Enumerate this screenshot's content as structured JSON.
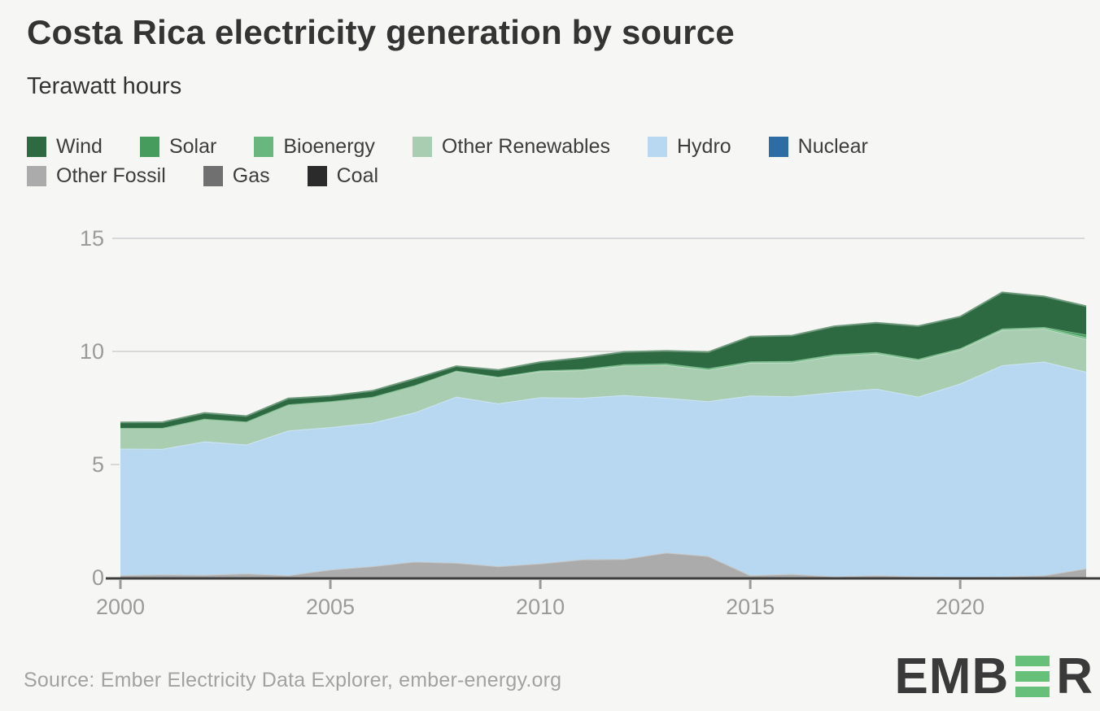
{
  "header": {
    "title": "Costa Rica electricity generation by source",
    "subtitle": "Terawatt hours"
  },
  "legend": {
    "rows": [
      [
        "Wind",
        "Solar",
        "Bioenergy",
        "Other Renewables",
        "Hydro",
        "Nuclear"
      ],
      [
        "Other Fossil",
        "Gas",
        "Coal"
      ]
    ]
  },
  "chart_data": {
    "type": "area",
    "stacked": true,
    "title": "Costa Rica electricity generation by source",
    "ylabel": "Terawatt hours",
    "xlabel": "",
    "unit": "TWh",
    "ylim": [
      0,
      15
    ],
    "yticks": [
      0,
      5,
      10,
      15
    ],
    "xticks": [
      2000,
      2005,
      2010,
      2015,
      2020
    ],
    "grid": "horizontal",
    "legend_position": "top",
    "x": [
      2000,
      2001,
      2002,
      2003,
      2004,
      2005,
      2006,
      2007,
      2008,
      2009,
      2010,
      2011,
      2012,
      2013,
      2014,
      2015,
      2016,
      2017,
      2018,
      2019,
      2020,
      2021,
      2022,
      2023
    ],
    "series": [
      {
        "name": "Wind",
        "color": "#2d6a42",
        "values": [
          0.24,
          0.25,
          0.26,
          0.24,
          0.26,
          0.23,
          0.27,
          0.29,
          0.2,
          0.3,
          0.37,
          0.5,
          0.55,
          0.56,
          0.72,
          1.1,
          1.12,
          1.24,
          1.3,
          1.45,
          1.4,
          1.6,
          1.35,
          1.25
        ]
      },
      {
        "name": "Solar",
        "color": "#459c5c",
        "values": [
          0,
          0,
          0,
          0,
          0,
          0,
          0,
          0,
          0,
          0,
          0,
          0,
          0,
          0,
          0,
          0,
          0.01,
          0.01,
          0.01,
          0.01,
          0.01,
          0.02,
          0.03,
          0.12
        ]
      },
      {
        "name": "Bioenergy",
        "color": "#68b77e",
        "values": [
          0,
          0,
          0,
          0,
          0,
          0,
          0,
          0,
          0.02,
          0.03,
          0.04,
          0.05,
          0.06,
          0.07,
          0.07,
          0.06,
          0.06,
          0.06,
          0.06,
          0.06,
          0.05,
          0.05,
          0.05,
          0.08
        ]
      },
      {
        "name": "Other Renewables",
        "color": "#a8cdb0",
        "values": [
          0.92,
          0.93,
          1.0,
          1.02,
          1.16,
          1.15,
          1.14,
          1.2,
          1.13,
          1.15,
          1.15,
          1.22,
          1.3,
          1.45,
          1.38,
          1.45,
          1.5,
          1.6,
          1.55,
          1.6,
          1.5,
          1.55,
          1.45,
          1.45
        ]
      },
      {
        "name": "Hydro",
        "color": "#b7d8f0",
        "values": [
          5.6,
          5.55,
          5.9,
          5.7,
          6.4,
          6.3,
          6.35,
          6.6,
          7.35,
          7.2,
          7.35,
          7.15,
          7.25,
          6.85,
          6.85,
          7.95,
          7.85,
          8.15,
          8.25,
          7.95,
          8.55,
          9.35,
          9.45,
          8.7
        ]
      },
      {
        "name": "Nuclear",
        "color": "#2e6da4",
        "values": [
          0,
          0,
          0,
          0,
          0,
          0,
          0,
          0,
          0,
          0,
          0,
          0,
          0,
          0,
          0,
          0,
          0,
          0,
          0,
          0,
          0,
          0,
          0,
          0
        ]
      },
      {
        "name": "Other Fossil",
        "color": "#ababab",
        "values": [
          0.1,
          0.14,
          0.12,
          0.18,
          0.1,
          0.35,
          0.5,
          0.7,
          0.65,
          0.5,
          0.62,
          0.8,
          0.82,
          1.1,
          0.95,
          0.1,
          0.16,
          0.05,
          0.1,
          0.05,
          0.03,
          0.04,
          0.1,
          0.4
        ]
      },
      {
        "name": "Gas",
        "color": "#707070",
        "values": [
          0,
          0,
          0,
          0,
          0,
          0,
          0,
          0,
          0,
          0,
          0,
          0,
          0,
          0,
          0,
          0,
          0,
          0,
          0,
          0,
          0,
          0,
          0,
          0
        ]
      },
      {
        "name": "Coal",
        "color": "#2b2b2b",
        "values": [
          0,
          0,
          0,
          0,
          0,
          0,
          0,
          0,
          0,
          0,
          0,
          0,
          0,
          0,
          0,
          0,
          0,
          0,
          0,
          0,
          0,
          0,
          0,
          0
        ]
      }
    ],
    "stack_order_bottom_up": [
      "Coal",
      "Gas",
      "Other Fossil",
      "Nuclear",
      "Hydro",
      "Other Renewables",
      "Bioenergy",
      "Solar",
      "Wind"
    ]
  },
  "style": {
    "grid_color": "#d8d8d8",
    "axis_color": "#3d3d3d",
    "tick_label_color": "#9b9b9b",
    "background": "#f6f6f4",
    "logo_green": "#67c07a",
    "logo_dark": "#3a3a3a"
  },
  "footer": {
    "source": "Source: Ember Electricity Data Explorer, ember-energy.org"
  },
  "logo": {
    "prefix": "EMB",
    "suffix": "R"
  }
}
